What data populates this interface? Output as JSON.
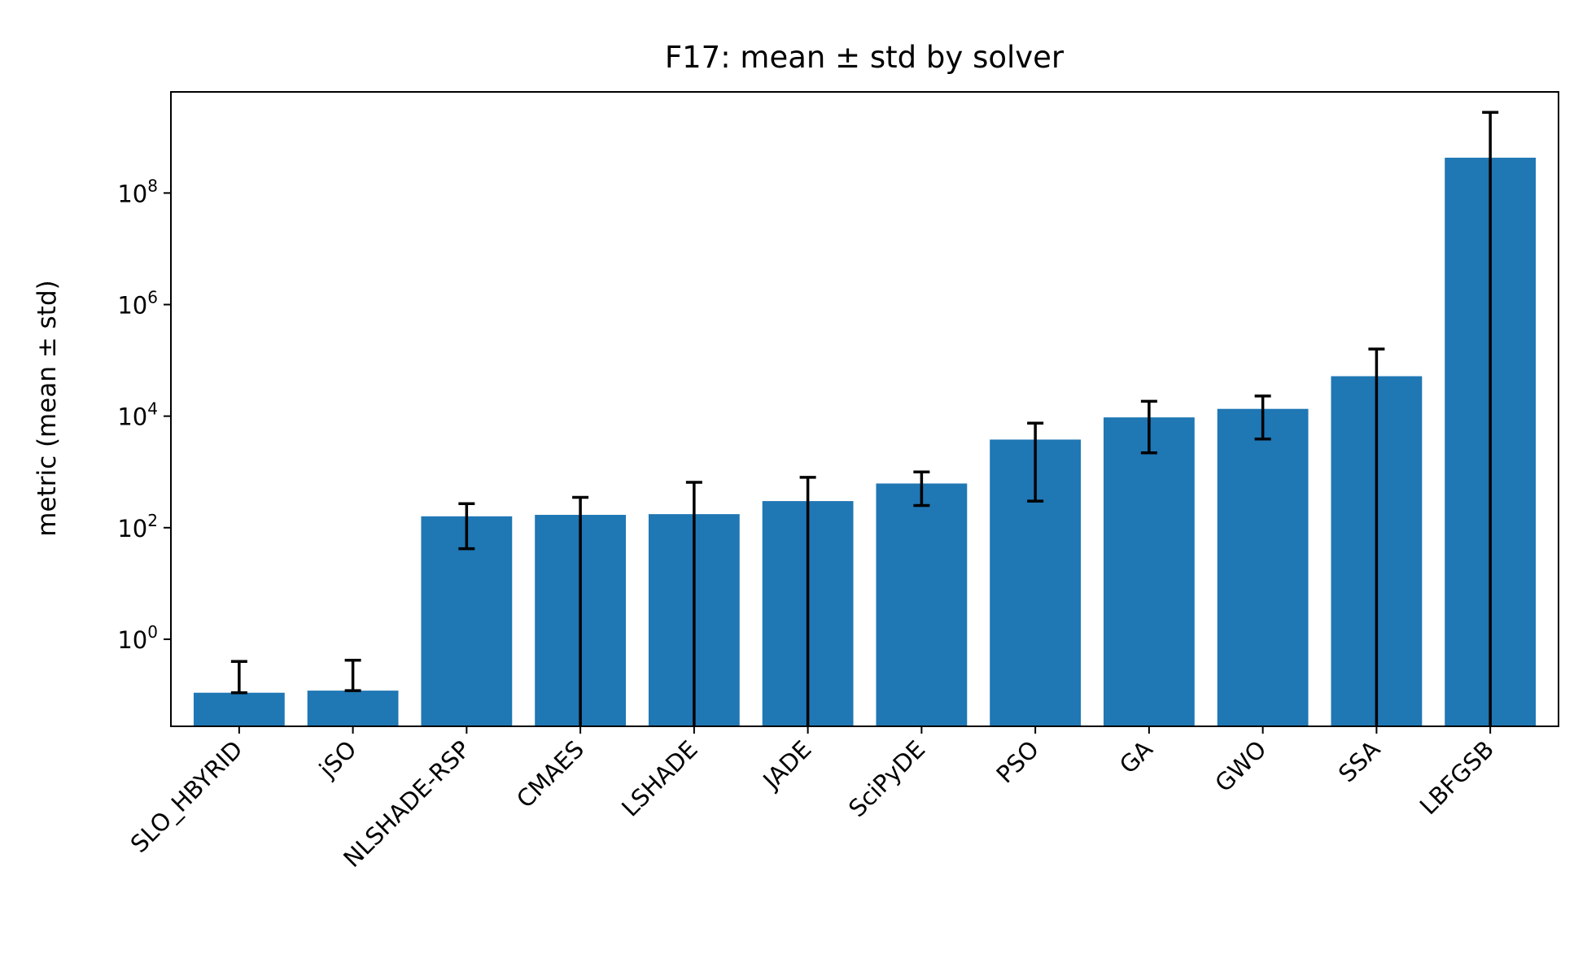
{
  "chart_data": {
    "type": "bar",
    "title": "F17: mean ± std by solver",
    "xlabel": "",
    "ylabel": "metric (mean ± std)",
    "y_scale": "log",
    "ylim": [
      0.0275,
      6500000000
    ],
    "grid": false,
    "legend": "none",
    "bar_color": "#1f77b4",
    "error_color": "#000000",
    "y_ticks": [
      {
        "value": 1,
        "base": "10",
        "exp": "0"
      },
      {
        "value": 100,
        "base": "10",
        "exp": "2"
      },
      {
        "value": 10000,
        "base": "10",
        "exp": "4"
      },
      {
        "value": 1000000,
        "base": "10",
        "exp": "6"
      },
      {
        "value": 100000000,
        "base": "10",
        "exp": "8"
      }
    ],
    "categories": [
      "SLO_HBYRID",
      "jSO",
      "NLSHADE-RSP",
      "CMAES",
      "LSHADE",
      "JADE",
      "SciPyDE",
      "PSO",
      "GA",
      "GWO",
      "SSA",
      "LBFGSB"
    ],
    "values": [
      0.11,
      0.12,
      160,
      170,
      175,
      300,
      620,
      3800,
      9500,
      13500,
      52000,
      430000000
    ],
    "err_low": [
      0.11,
      0.12,
      42,
      0.0275,
      0.0275,
      0.0275,
      250,
      300,
      2200,
      3900,
      0.0275,
      0.0275
    ],
    "err_high": [
      0.4,
      0.42,
      270,
      350,
      650,
      800,
      1000,
      7500,
      18500,
      23000,
      160000,
      2800000000
    ]
  }
}
